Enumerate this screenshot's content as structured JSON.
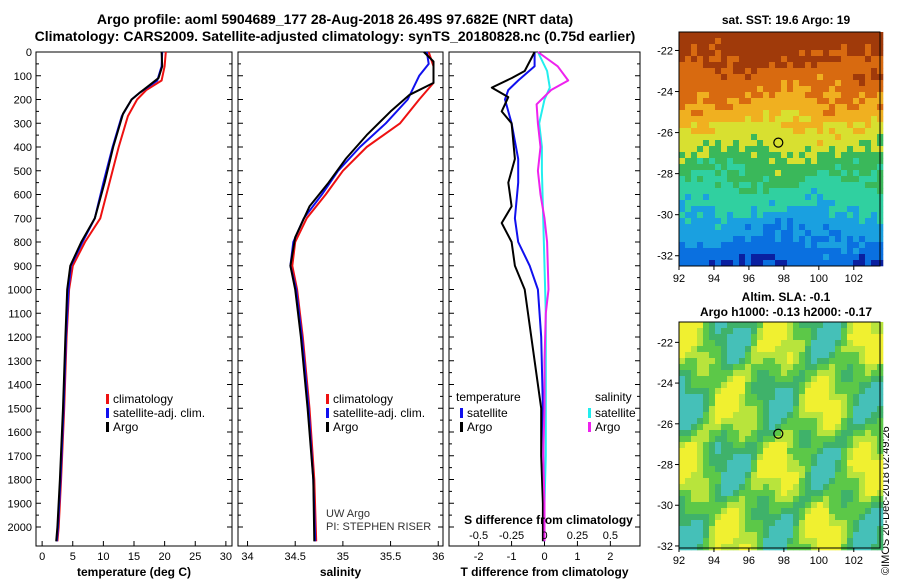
{
  "header": {
    "line1": "Argo profile: aoml 5904689_177 28-Aug-2018 26.49S 97.682E (NRT data)",
    "line2": "Climatology: CARS2009. Satellite-adjusted climatology: synTS_20180828.nc (0.75d earlier)"
  },
  "maps": {
    "sst_title": "sat. SST: 19.6 Argo: 19",
    "sla_title1": "Altim. SLA: -0.1",
    "sla_title2": "Argo h1000: -0.13 h2000: -0.17",
    "lon_ticks": [
      "92",
      "94",
      "96",
      "98",
      "100",
      "102"
    ],
    "lat_ticks": [
      "-22",
      "-24",
      "-26",
      "-28",
      "-30",
      "-32"
    ],
    "float_lon": 97.682,
    "float_lat": -26.49
  },
  "credit": "©IMOS 20-Dec-2018 02:49:26",
  "colors": {
    "climatology": "#ee1111",
    "satellite_adj": "#1010ee",
    "argo": "#000000",
    "satellite_salinity": "#22eeee",
    "argo_salinity": "#ee22ee"
  },
  "chart_data": [
    {
      "type": "line",
      "name": "temperature",
      "xlabel": "temperature (deg C)",
      "xticks": [
        "0",
        "5",
        "10",
        "15",
        "20",
        "25",
        "30"
      ],
      "xlim": [
        -1,
        31
      ],
      "ylim": [
        0,
        2080
      ],
      "yticks": [
        "0",
        "100",
        "200",
        "300",
        "400",
        "500",
        "600",
        "700",
        "800",
        "900",
        "1000",
        "1100",
        "1200",
        "1300",
        "1400",
        "1500",
        "1600",
        "1700",
        "1800",
        "1900",
        "2000"
      ],
      "legend": [
        "climatology",
        "satellite-adj. clim.",
        "Argo"
      ],
      "series": [
        {
          "name": "climatology",
          "color_key": "climatology",
          "points": [
            [
              20.2,
              0
            ],
            [
              20,
              60
            ],
            [
              19.5,
              120
            ],
            [
              17,
              160
            ],
            [
              15.5,
              200
            ],
            [
              14,
              270
            ],
            [
              12.5,
              400
            ],
            [
              11,
              550
            ],
            [
              9.5,
              700
            ],
            [
              7,
              800
            ],
            [
              5,
              900
            ],
            [
              4.4,
              1000
            ],
            [
              4,
              1200
            ],
            [
              3.6,
              1500
            ],
            [
              3.1,
              1800
            ],
            [
              2.7,
              2000
            ],
            [
              2.5,
              2060
            ]
          ]
        },
        {
          "name": "satellite-adj. clim.",
          "color_key": "satellite_adj",
          "points": [
            [
              19.6,
              0
            ],
            [
              19.5,
              60
            ],
            [
              18.8,
              120
            ],
            [
              16,
              170
            ],
            [
              14.6,
              200
            ],
            [
              13,
              270
            ],
            [
              11.5,
              400
            ],
            [
              10,
              550
            ],
            [
              8.6,
              700
            ],
            [
              6.6,
              800
            ],
            [
              4.7,
              900
            ],
            [
              4.3,
              1000
            ],
            [
              3.9,
              1200
            ],
            [
              3.5,
              1500
            ],
            [
              3.0,
              1800
            ],
            [
              2.6,
              2000
            ],
            [
              2.4,
              2060
            ]
          ]
        },
        {
          "name": "Argo",
          "color_key": "argo",
          "points": [
            [
              19.5,
              0
            ],
            [
              19.6,
              60
            ],
            [
              19,
              110
            ],
            [
              17.5,
              140
            ],
            [
              16,
              170
            ],
            [
              14.6,
              200
            ],
            [
              13.2,
              260
            ],
            [
              11.6,
              400
            ],
            [
              10.2,
              550
            ],
            [
              8.6,
              700
            ],
            [
              6.4,
              800
            ],
            [
              4.6,
              900
            ],
            [
              4.1,
              1000
            ],
            [
              3.8,
              1200
            ],
            [
              3.4,
              1500
            ],
            [
              2.9,
              1800
            ],
            [
              2.5,
              2000
            ],
            [
              2.3,
              2060
            ]
          ]
        }
      ]
    },
    {
      "type": "line",
      "name": "salinity",
      "xlabel": "salinity",
      "xticks": [
        "34",
        "34.5",
        "35",
        "35.5",
        "36"
      ],
      "xlim": [
        33.9,
        36.05
      ],
      "ylim": [
        0,
        2080
      ],
      "legend": [
        "climatology",
        "satellite-adj. clim.",
        "Argo"
      ],
      "annotation": [
        "UW Argo",
        "PI: STEPHEN RISER"
      ],
      "series": [
        {
          "name": "climatology",
          "color_key": "climatology",
          "points": [
            [
              35.9,
              0
            ],
            [
              35.95,
              60
            ],
            [
              35.95,
              130
            ],
            [
              35.8,
              200
            ],
            [
              35.6,
              300
            ],
            [
              35.25,
              400
            ],
            [
              35,
              500
            ],
            [
              34.82,
              600
            ],
            [
              34.62,
              700
            ],
            [
              34.5,
              800
            ],
            [
              34.47,
              900
            ],
            [
              34.52,
              1000
            ],
            [
              34.58,
              1200
            ],
            [
              34.65,
              1500
            ],
            [
              34.7,
              1800
            ],
            [
              34.72,
              2060
            ]
          ]
        },
        {
          "name": "satellite-adj. clim.",
          "color_key": "satellite_adj",
          "points": [
            [
              35.88,
              0
            ],
            [
              35.9,
              50
            ],
            [
              35.8,
              100
            ],
            [
              35.68,
              200
            ],
            [
              35.45,
              300
            ],
            [
              35.18,
              400
            ],
            [
              34.95,
              500
            ],
            [
              34.78,
              600
            ],
            [
              34.59,
              700
            ],
            [
              34.48,
              800
            ],
            [
              34.45,
              900
            ],
            [
              34.51,
              1000
            ],
            [
              34.57,
              1200
            ],
            [
              34.64,
              1500
            ],
            [
              34.69,
              1800
            ],
            [
              34.71,
              2060
            ]
          ]
        },
        {
          "name": "Argo",
          "color_key": "argo",
          "points": [
            [
              35.85,
              0
            ],
            [
              35.95,
              40
            ],
            [
              35.95,
              130
            ],
            [
              35.7,
              180
            ],
            [
              35.5,
              250
            ],
            [
              35.25,
              350
            ],
            [
              35.03,
              450
            ],
            [
              34.85,
              550
            ],
            [
              34.65,
              650
            ],
            [
              34.5,
              780
            ],
            [
              34.45,
              900
            ],
            [
              34.5,
              1000
            ],
            [
              34.56,
              1200
            ],
            [
              34.63,
              1500
            ],
            [
              34.69,
              1800
            ],
            [
              34.7,
              2060
            ]
          ]
        }
      ]
    },
    {
      "type": "line",
      "name": "difference",
      "xlabel": "T difference from climatology",
      "xticks": [
        "-2",
        "-1",
        "0",
        "1",
        "2"
      ],
      "xlim": [
        -2.9,
        2.9
      ],
      "top_xlabel": "S difference from climatology",
      "top_xticks": [
        "-0.5",
        "-0.25",
        "0",
        "0.25",
        "0.5"
      ],
      "legend_left_title": "temperature",
      "legend_right_title": "salinity",
      "legend_left": [
        "satellite",
        "Argo"
      ],
      "legend_right": [
        "satellite",
        "Argo"
      ],
      "series": [
        {
          "name": "T satellite",
          "color_key": "satellite_adj",
          "points": [
            [
              -0.3,
              0
            ],
            [
              -0.3,
              60
            ],
            [
              -0.8,
              120
            ],
            [
              -1.1,
              160
            ],
            [
              -1.2,
              200
            ],
            [
              -1,
              300
            ],
            [
              -0.8,
              450
            ],
            [
              -0.8,
              550
            ],
            [
              -0.9,
              700
            ],
            [
              -0.8,
              800
            ],
            [
              -0.45,
              900
            ],
            [
              -0.2,
              1000
            ],
            [
              -0.1,
              1200
            ],
            [
              -0.05,
              1500
            ],
            [
              -0.03,
              1800
            ],
            [
              -0.02,
              2000
            ],
            [
              -0.02,
              2060
            ]
          ]
        },
        {
          "name": "T Argo",
          "color_key": "argo",
          "points": [
            [
              -0.3,
              0
            ],
            [
              -0.6,
              80
            ],
            [
              -1,
              110
            ],
            [
              -1.6,
              150
            ],
            [
              -1.1,
              190
            ],
            [
              -1.3,
              250
            ],
            [
              -1,
              300
            ],
            [
              -0.9,
              450
            ],
            [
              -1.1,
              550
            ],
            [
              -1,
              650
            ],
            [
              -1.3,
              720
            ],
            [
              -1,
              800
            ],
            [
              -0.9,
              900
            ],
            [
              -0.6,
              1000
            ],
            [
              -0.5,
              1100
            ],
            [
              -0.3,
              1300
            ],
            [
              -0.1,
              1500
            ],
            [
              -0.1,
              1700
            ],
            [
              -0.05,
              1900
            ],
            [
              -0.05,
              2060
            ]
          ]
        },
        {
          "name": "S satellite",
          "color_key": "satellite_salinity",
          "points": [
            [
              -0.05,
              0
            ],
            [
              0.02,
              80
            ],
            [
              0.04,
              150
            ],
            [
              0.0,
              200
            ],
            [
              -0.04,
              300
            ],
            [
              -0.02,
              400
            ],
            [
              -0.02,
              500
            ],
            [
              -0.01,
              700
            ],
            [
              0.0,
              900
            ],
            [
              0.01,
              1100
            ],
            [
              0.01,
              1300
            ],
            [
              0.01,
              1500
            ],
            [
              0.01,
              1700
            ],
            [
              0.0,
              1900
            ],
            [
              0.0,
              2060
            ]
          ]
        },
        {
          "name": "S Argo",
          "color_key": "argo_salinity",
          "points": [
            [
              -0.05,
              0
            ],
            [
              0.1,
              60
            ],
            [
              0.18,
              120
            ],
            [
              0.05,
              160
            ],
            [
              -0.06,
              220
            ],
            [
              -0.05,
              300
            ],
            [
              -0.03,
              400
            ],
            [
              -0.05,
              500
            ],
            [
              -0.03,
              600
            ],
            [
              0.0,
              700
            ],
            [
              0.02,
              800
            ],
            [
              0.03,
              1000
            ],
            [
              0.01,
              1100
            ],
            [
              0.0,
              1300
            ],
            [
              0.0,
              1500
            ],
            [
              -0.01,
              1700
            ],
            [
              0.0,
              1900
            ],
            [
              0.0,
              2060
            ]
          ]
        }
      ]
    }
  ]
}
